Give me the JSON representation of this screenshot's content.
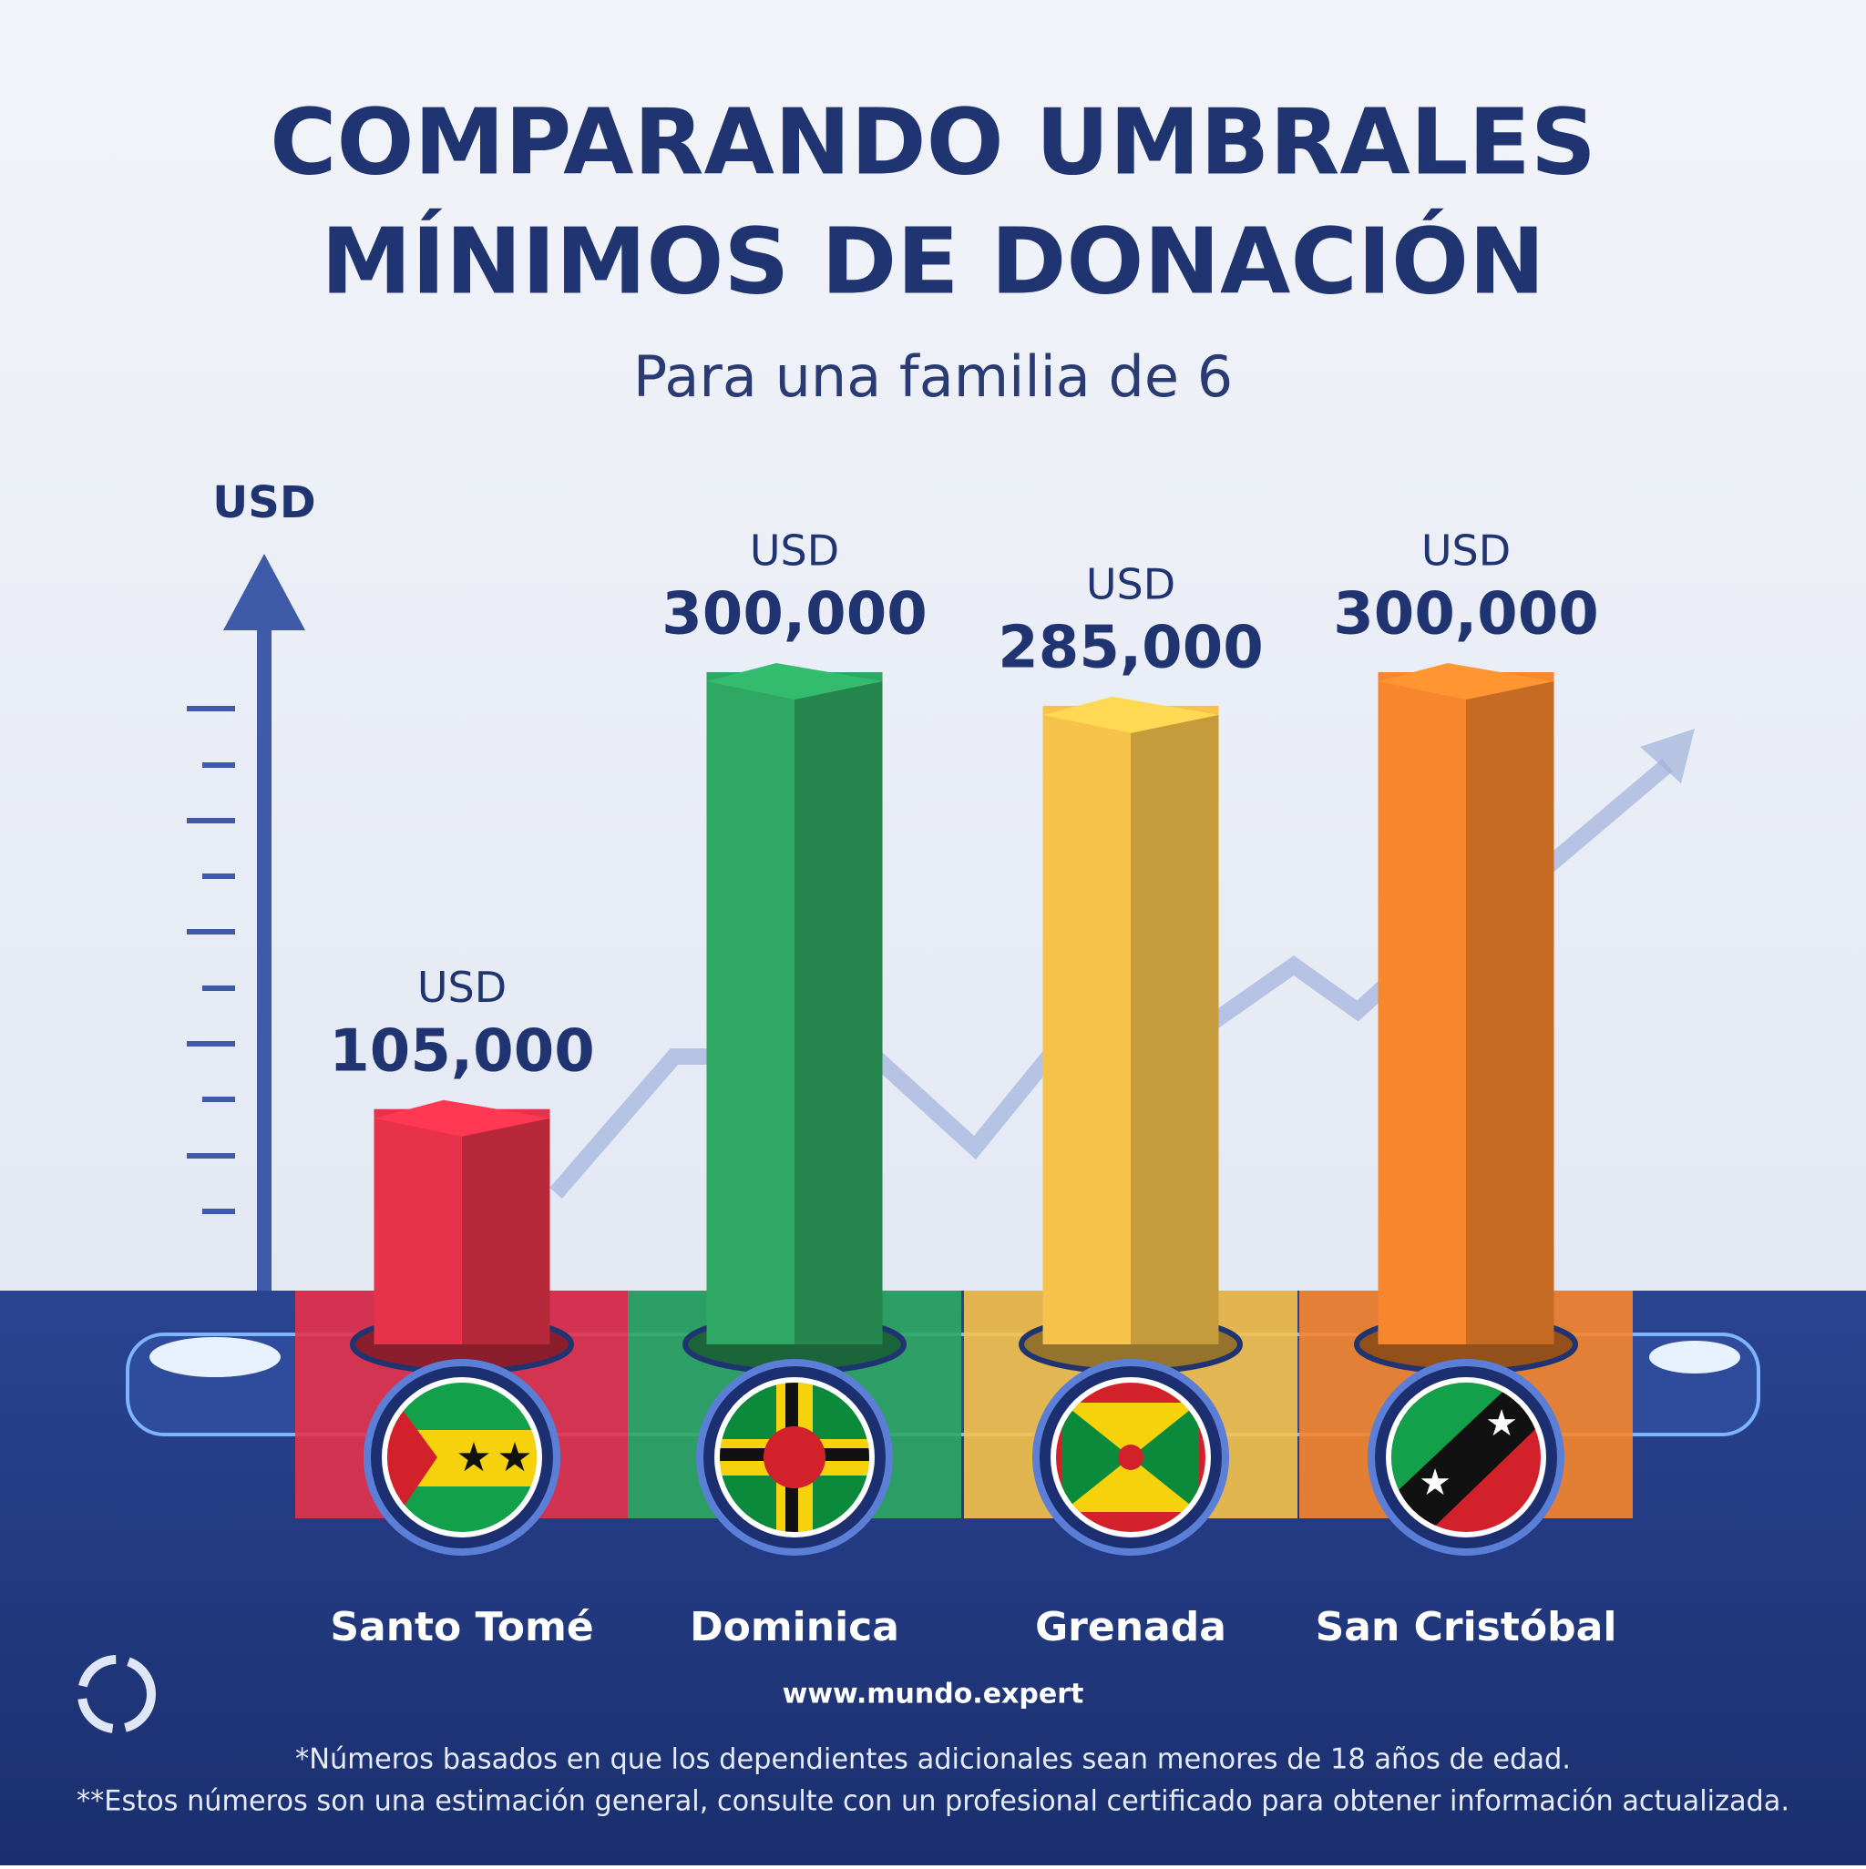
{
  "chart_data": {
    "type": "bar",
    "title": [
      "COMPARANDO UMBRALES",
      "MÍNIMOS DE DONACIÓN"
    ],
    "subtitle": "Para una familia de 6",
    "ylabel": "USD",
    "categories": [
      "Santo Tomé",
      "Dominica",
      "Grenada",
      "San Cristóbal"
    ],
    "values": [
      105000,
      300000,
      285000,
      300000
    ],
    "value_labels": [
      "105,000",
      "300,000",
      "285,000",
      "300,000"
    ],
    "colors": [
      "#e6324a",
      "#2ea862",
      "#f6c24a",
      "#f7862c"
    ],
    "ylim": [
      0,
      300000
    ],
    "website": "www.mundo.expert",
    "notes": [
      "*Números basados en que los dependientes adicionales sean menores de 18 años de edad.",
      "**Estos números son una estimación general, consulte con un profesional certificado para obtener información actualizada."
    ]
  }
}
